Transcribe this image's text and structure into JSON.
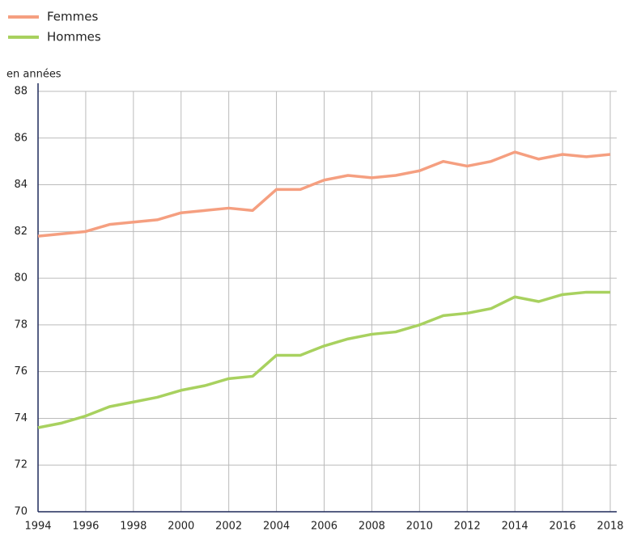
{
  "chart_data": {
    "type": "line",
    "y_label": "en années",
    "x": [
      1994,
      1995,
      1996,
      1997,
      1998,
      1999,
      2000,
      2001,
      2002,
      2003,
      2004,
      2005,
      2006,
      2007,
      2008,
      2009,
      2010,
      2011,
      2012,
      2013,
      2014,
      2015,
      2016,
      2017,
      2018
    ],
    "series": [
      {
        "name": "Femmes",
        "color": "#f59f80",
        "values": [
          81.8,
          81.9,
          82.0,
          82.3,
          82.4,
          82.5,
          82.8,
          82.9,
          83.0,
          82.9,
          83.8,
          83.8,
          84.2,
          84.4,
          84.3,
          84.4,
          84.6,
          85.0,
          84.8,
          85.0,
          85.4,
          85.1,
          85.3,
          85.2,
          85.3
        ]
      },
      {
        "name": "Hommes",
        "color": "#a8d15f",
        "values": [
          73.6,
          73.8,
          74.1,
          74.5,
          74.7,
          74.9,
          75.2,
          75.4,
          75.7,
          75.8,
          76.7,
          76.7,
          77.1,
          77.4,
          77.6,
          77.7,
          78.0,
          78.4,
          78.5,
          78.7,
          79.2,
          79.0,
          79.3,
          79.4,
          79.4
        ]
      }
    ],
    "xlim": [
      1994,
      2018
    ],
    "xticks": [
      1994,
      1996,
      1998,
      2000,
      2002,
      2004,
      2006,
      2008,
      2010,
      2012,
      2014,
      2016,
      2018
    ],
    "ylim": [
      70,
      88
    ],
    "yticks": [
      70,
      72,
      74,
      76,
      78,
      80,
      82,
      84,
      86,
      88
    ],
    "grid": true,
    "legend": "top-left"
  }
}
